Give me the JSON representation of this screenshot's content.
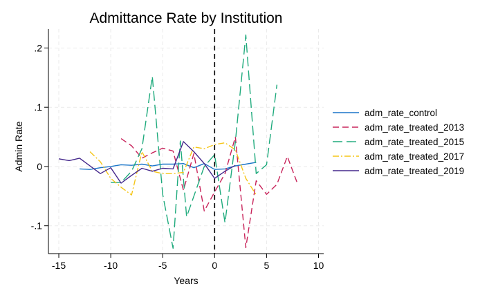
{
  "chart_data": {
    "type": "line",
    "title": "Admittance Rate by Institution",
    "xlabel": "Years",
    "ylabel": "Admin Rate",
    "xlim": [
      -16,
      10.5
    ],
    "ylim": [
      -0.147,
      0.232
    ],
    "xticks": [
      -15,
      -10,
      -5,
      0,
      5,
      10
    ],
    "xtick_labels": [
      "-15",
      "-10",
      "-5",
      "0",
      "5",
      "10"
    ],
    "yticks": [
      -0.1,
      0,
      0.1,
      0.2
    ],
    "ytick_labels": [
      "-.1",
      "0",
      ".1",
      ".2"
    ],
    "grid": true,
    "vline": {
      "x": 0,
      "style": "dashed",
      "color": "#000000"
    },
    "legend_position": "right",
    "series": [
      {
        "name": "adm_rate_control",
        "color": "#1a75c8",
        "dash": "",
        "x": [
          -13,
          -12,
          -11,
          -10,
          -9,
          -8,
          -7,
          -6,
          -5,
          -4,
          -3,
          -2,
          -1,
          0,
          1,
          2,
          3,
          4
        ],
        "y": [
          -0.004,
          -0.005,
          -0.002,
          0.0,
          0.003,
          0.002,
          0.004,
          0.001,
          0.004,
          0.004,
          0.005,
          -0.002,
          0.005,
          -0.005,
          -0.004,
          0.001,
          0.004,
          0.007
        ]
      },
      {
        "name": "adm_rate_treated_2013",
        "color": "#c8235a",
        "dash": "9 5",
        "x": [
          -9,
          -8,
          -7,
          -6,
          -5,
          -4,
          -3,
          -2,
          -1,
          0,
          1,
          2,
          3,
          4,
          5,
          6,
          7,
          8
        ],
        "y": [
          0.047,
          0.035,
          0.014,
          0.023,
          0.031,
          0.026,
          -0.04,
          0.022,
          -0.075,
          -0.043,
          -0.012,
          0.05,
          -0.137,
          -0.024,
          -0.047,
          -0.03,
          0.017,
          -0.03
        ]
      },
      {
        "name": "adm_rate_treated_2015",
        "color": "#1eaa7c",
        "dash": "14 6",
        "x": [
          -10,
          -9,
          -8,
          -7,
          -6,
          -5,
          -4,
          -3.3,
          -2.7,
          -2,
          -1,
          0,
          1,
          2,
          3,
          4,
          5,
          6
        ],
        "y": [
          -0.027,
          -0.027,
          -0.008,
          0.03,
          0.152,
          -0.047,
          -0.138,
          0.043,
          -0.085,
          -0.05,
          0.0,
          0.02,
          -0.095,
          0.042,
          0.222,
          -0.012,
          0.003,
          0.138
        ]
      },
      {
        "name": "adm_rate_treated_2017",
        "color": "#f5c516",
        "dash": "9 3 2 3",
        "x": [
          -12,
          -11,
          -10,
          -9,
          -8,
          -7,
          -6,
          -5,
          -4,
          -3,
          -2,
          -1,
          0,
          1,
          2,
          3,
          4
        ],
        "y": [
          0.025,
          0.008,
          -0.02,
          -0.035,
          -0.048,
          0.025,
          -0.008,
          -0.012,
          -0.012,
          -0.01,
          0.033,
          0.03,
          0.037,
          0.04,
          0.028,
          -0.02,
          -0.048
        ]
      },
      {
        "name": "adm_rate_treated_2019",
        "color": "#45288c",
        "dash": "",
        "x": [
          -15,
          -14,
          -13,
          -12,
          -11,
          -10,
          -9,
          -8,
          -7,
          -6,
          -5,
          -4,
          -3,
          -2,
          -1,
          0,
          1,
          2
        ],
        "y": [
          0.013,
          0.01,
          0.014,
          0.001,
          -0.012,
          -0.002,
          -0.028,
          -0.015,
          -0.003,
          -0.008,
          -0.003,
          -0.004,
          0.042,
          0.025,
          0.005,
          -0.02,
          -0.008,
          0.002
        ]
      }
    ]
  }
}
